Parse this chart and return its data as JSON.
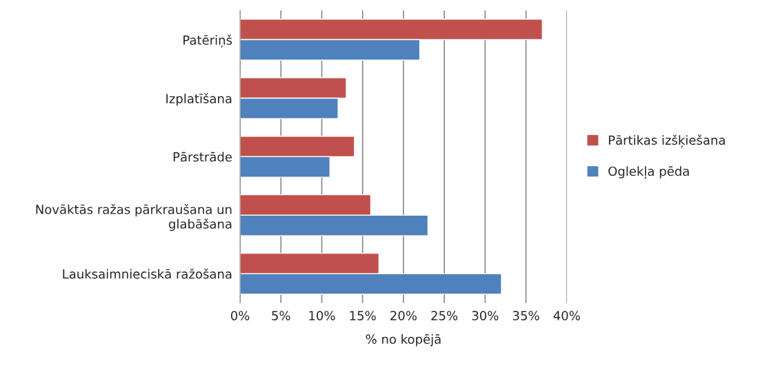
{
  "chart_data": {
    "type": "bar",
    "orientation": "horizontal",
    "xlabel": "% no kopējā",
    "categories": [
      "Patēriņš",
      "Izplatīšana",
      "Pārstrāde",
      "Novāktās ražas pārkraušana un glabāšana",
      "Lauksaimnieciskā ražošana"
    ],
    "series": [
      {
        "name": "Pārtikas izšķiešana",
        "color": "#c0504d",
        "values": [
          37,
          13,
          14,
          16,
          17
        ]
      },
      {
        "name": "Oglekļa pēda",
        "color": "#4f81bd",
        "values": [
          22,
          12,
          11,
          23,
          32
        ]
      }
    ],
    "xlim": [
      0,
      40
    ],
    "xticks": [
      {
        "value": 0,
        "label": "0%"
      },
      {
        "value": 5,
        "label": "5%"
      },
      {
        "value": 10,
        "label": "10%"
      },
      {
        "value": 15,
        "label": "15%"
      },
      {
        "value": 20,
        "label": "20%"
      },
      {
        "value": 25,
        "label": "25%"
      },
      {
        "value": 30,
        "label": "30%"
      },
      {
        "value": 35,
        "label": "35%"
      },
      {
        "value": 40,
        "label": "40%"
      }
    ],
    "grid": "x",
    "legend": "right"
  }
}
